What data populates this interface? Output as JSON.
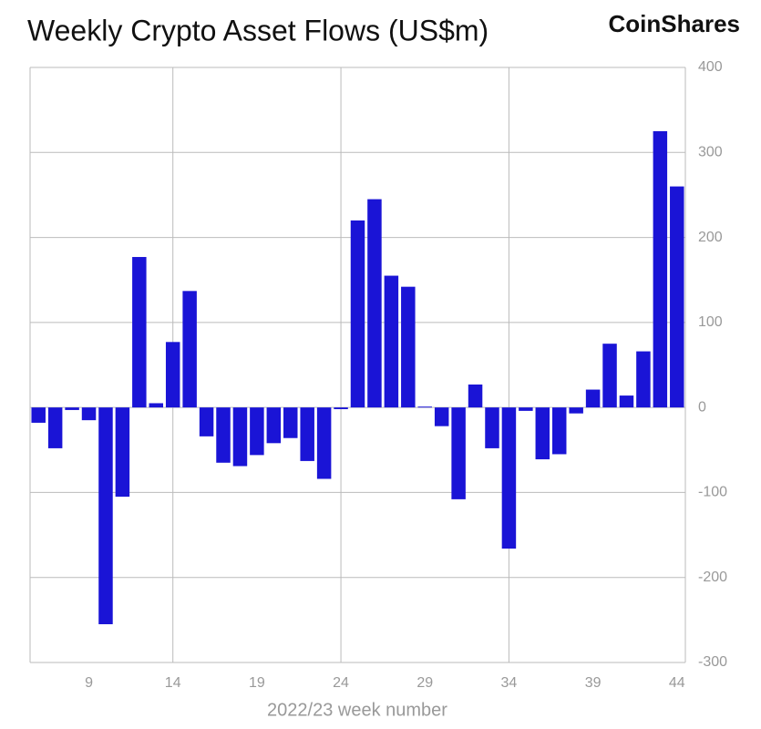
{
  "chart_data": {
    "type": "bar",
    "title": "Weekly Crypto Asset Flows (US$m)",
    "brand": "CoinShares",
    "x_label": "2022/23 week number",
    "x": [
      6,
      7,
      8,
      9,
      10,
      11,
      12,
      13,
      14,
      15,
      16,
      17,
      18,
      19,
      20,
      21,
      22,
      23,
      24,
      25,
      26,
      27,
      28,
      29,
      30,
      31,
      32,
      33,
      34,
      35,
      36,
      37,
      38,
      39,
      40,
      41,
      42,
      43,
      44
    ],
    "values": [
      -18,
      -48,
      -3,
      -15,
      -255,
      -105,
      177,
      5,
      77,
      137,
      -34,
      -65,
      -69,
      -56,
      -42,
      -36,
      -63,
      -84,
      -2,
      220,
      245,
      155,
      142,
      1,
      -22,
      -108,
      27,
      -48,
      -166,
      -4,
      -61,
      -55,
      -7,
      21,
      75,
      14,
      66,
      325,
      260
    ],
    "color": "#1a14d6",
    "xlim": [
      5.5,
      44.5
    ],
    "xticks": [
      9,
      14,
      19,
      24,
      29,
      34,
      39,
      44
    ],
    "ylim": [
      -300,
      400
    ],
    "yticks": [
      -300,
      -200,
      -100,
      0,
      100,
      200,
      300,
      400
    ],
    "grid": true
  }
}
